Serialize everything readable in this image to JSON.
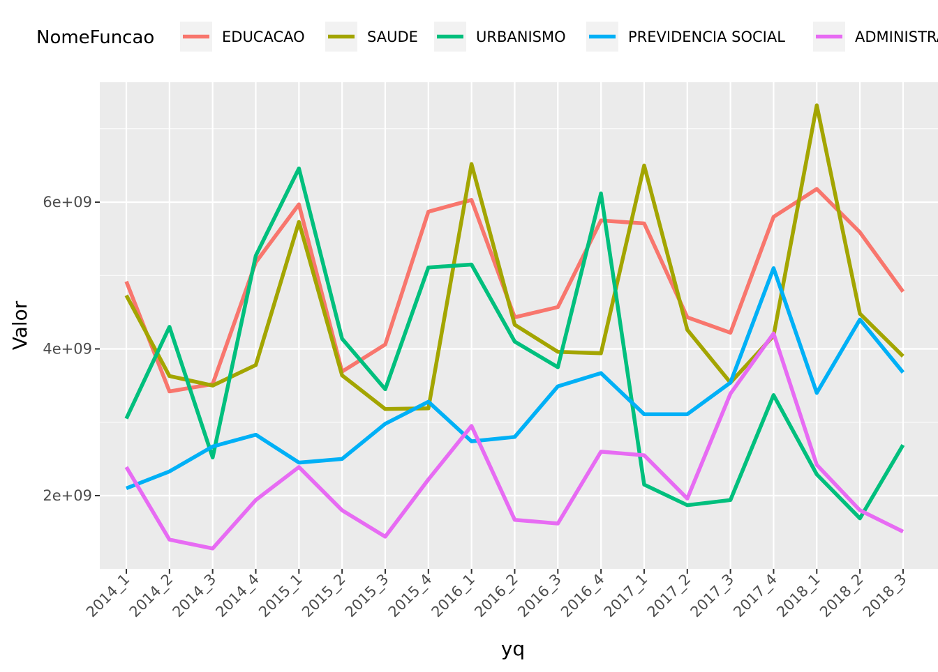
{
  "chart_data": {
    "type": "line",
    "title": "",
    "xlabel": "yq",
    "ylabel": "Valor",
    "legend_title": "NomeFuncao",
    "legend_position": "top",
    "grid": true,
    "ylim": [
      1000000000,
      7600000000
    ],
    "y_ticks": [
      2000000000,
      4000000000,
      6000000000
    ],
    "y_tick_labels": [
      "2e+09",
      "4e+09",
      "6e+09"
    ],
    "categories": [
      "2014_1",
      "2014_2",
      "2014_3",
      "2014_4",
      "2015_1",
      "2015_2",
      "2015_3",
      "2015_4",
      "2016_1",
      "2016_2",
      "2016_3",
      "2016_4",
      "2017_1",
      "2017_2",
      "2017_3",
      "2017_4",
      "2018_1",
      "2018_2",
      "2018_3"
    ],
    "series": [
      {
        "name": "EDUCACAO",
        "color": "#F8766D",
        "values": [
          4920000000,
          3420000000,
          3520000000,
          5180000000,
          5970000000,
          3690000000,
          4060000000,
          5870000000,
          6030000000,
          4430000000,
          4570000000,
          5750000000,
          5710000000,
          4430000000,
          4220000000,
          5800000000,
          6180000000,
          5590000000,
          4780000000
        ]
      },
      {
        "name": "SAUDE",
        "color": "#A3A500",
        "values": [
          4730000000,
          3630000000,
          3500000000,
          3780000000,
          5730000000,
          3640000000,
          3180000000,
          3190000000,
          6520000000,
          4330000000,
          3960000000,
          3940000000,
          6500000000,
          4260000000,
          3540000000,
          4180000000,
          7320000000,
          4480000000,
          3900000000
        ]
      },
      {
        "name": "URBANISMO",
        "color": "#00BF7D",
        "values": [
          3050000000,
          4300000000,
          2520000000,
          5270000000,
          6460000000,
          4140000000,
          3450000000,
          5110000000,
          5150000000,
          4100000000,
          3750000000,
          6120000000,
          2150000000,
          1870000000,
          1940000000,
          3370000000,
          2290000000,
          1690000000,
          2690000000
        ]
      },
      {
        "name": "PREVIDENCIA SOCIAL",
        "color": "#00B0F6",
        "values": [
          2100000000,
          2330000000,
          2670000000,
          2830000000,
          2450000000,
          2500000000,
          2980000000,
          3280000000,
          2740000000,
          2800000000,
          3490000000,
          3670000000,
          3110000000,
          3110000000,
          3540000000,
          5100000000,
          3400000000,
          4400000000,
          3680000000
        ]
      },
      {
        "name": "ADMINISTRACAO",
        "color": "#E76BF3",
        "values": [
          2390000000,
          1400000000,
          1280000000,
          1940000000,
          2390000000,
          1800000000,
          1440000000,
          2220000000,
          2950000000,
          1670000000,
          1620000000,
          2600000000,
          2550000000,
          1960000000,
          3390000000,
          4210000000,
          2420000000,
          1800000000,
          1510000000
        ]
      }
    ]
  }
}
